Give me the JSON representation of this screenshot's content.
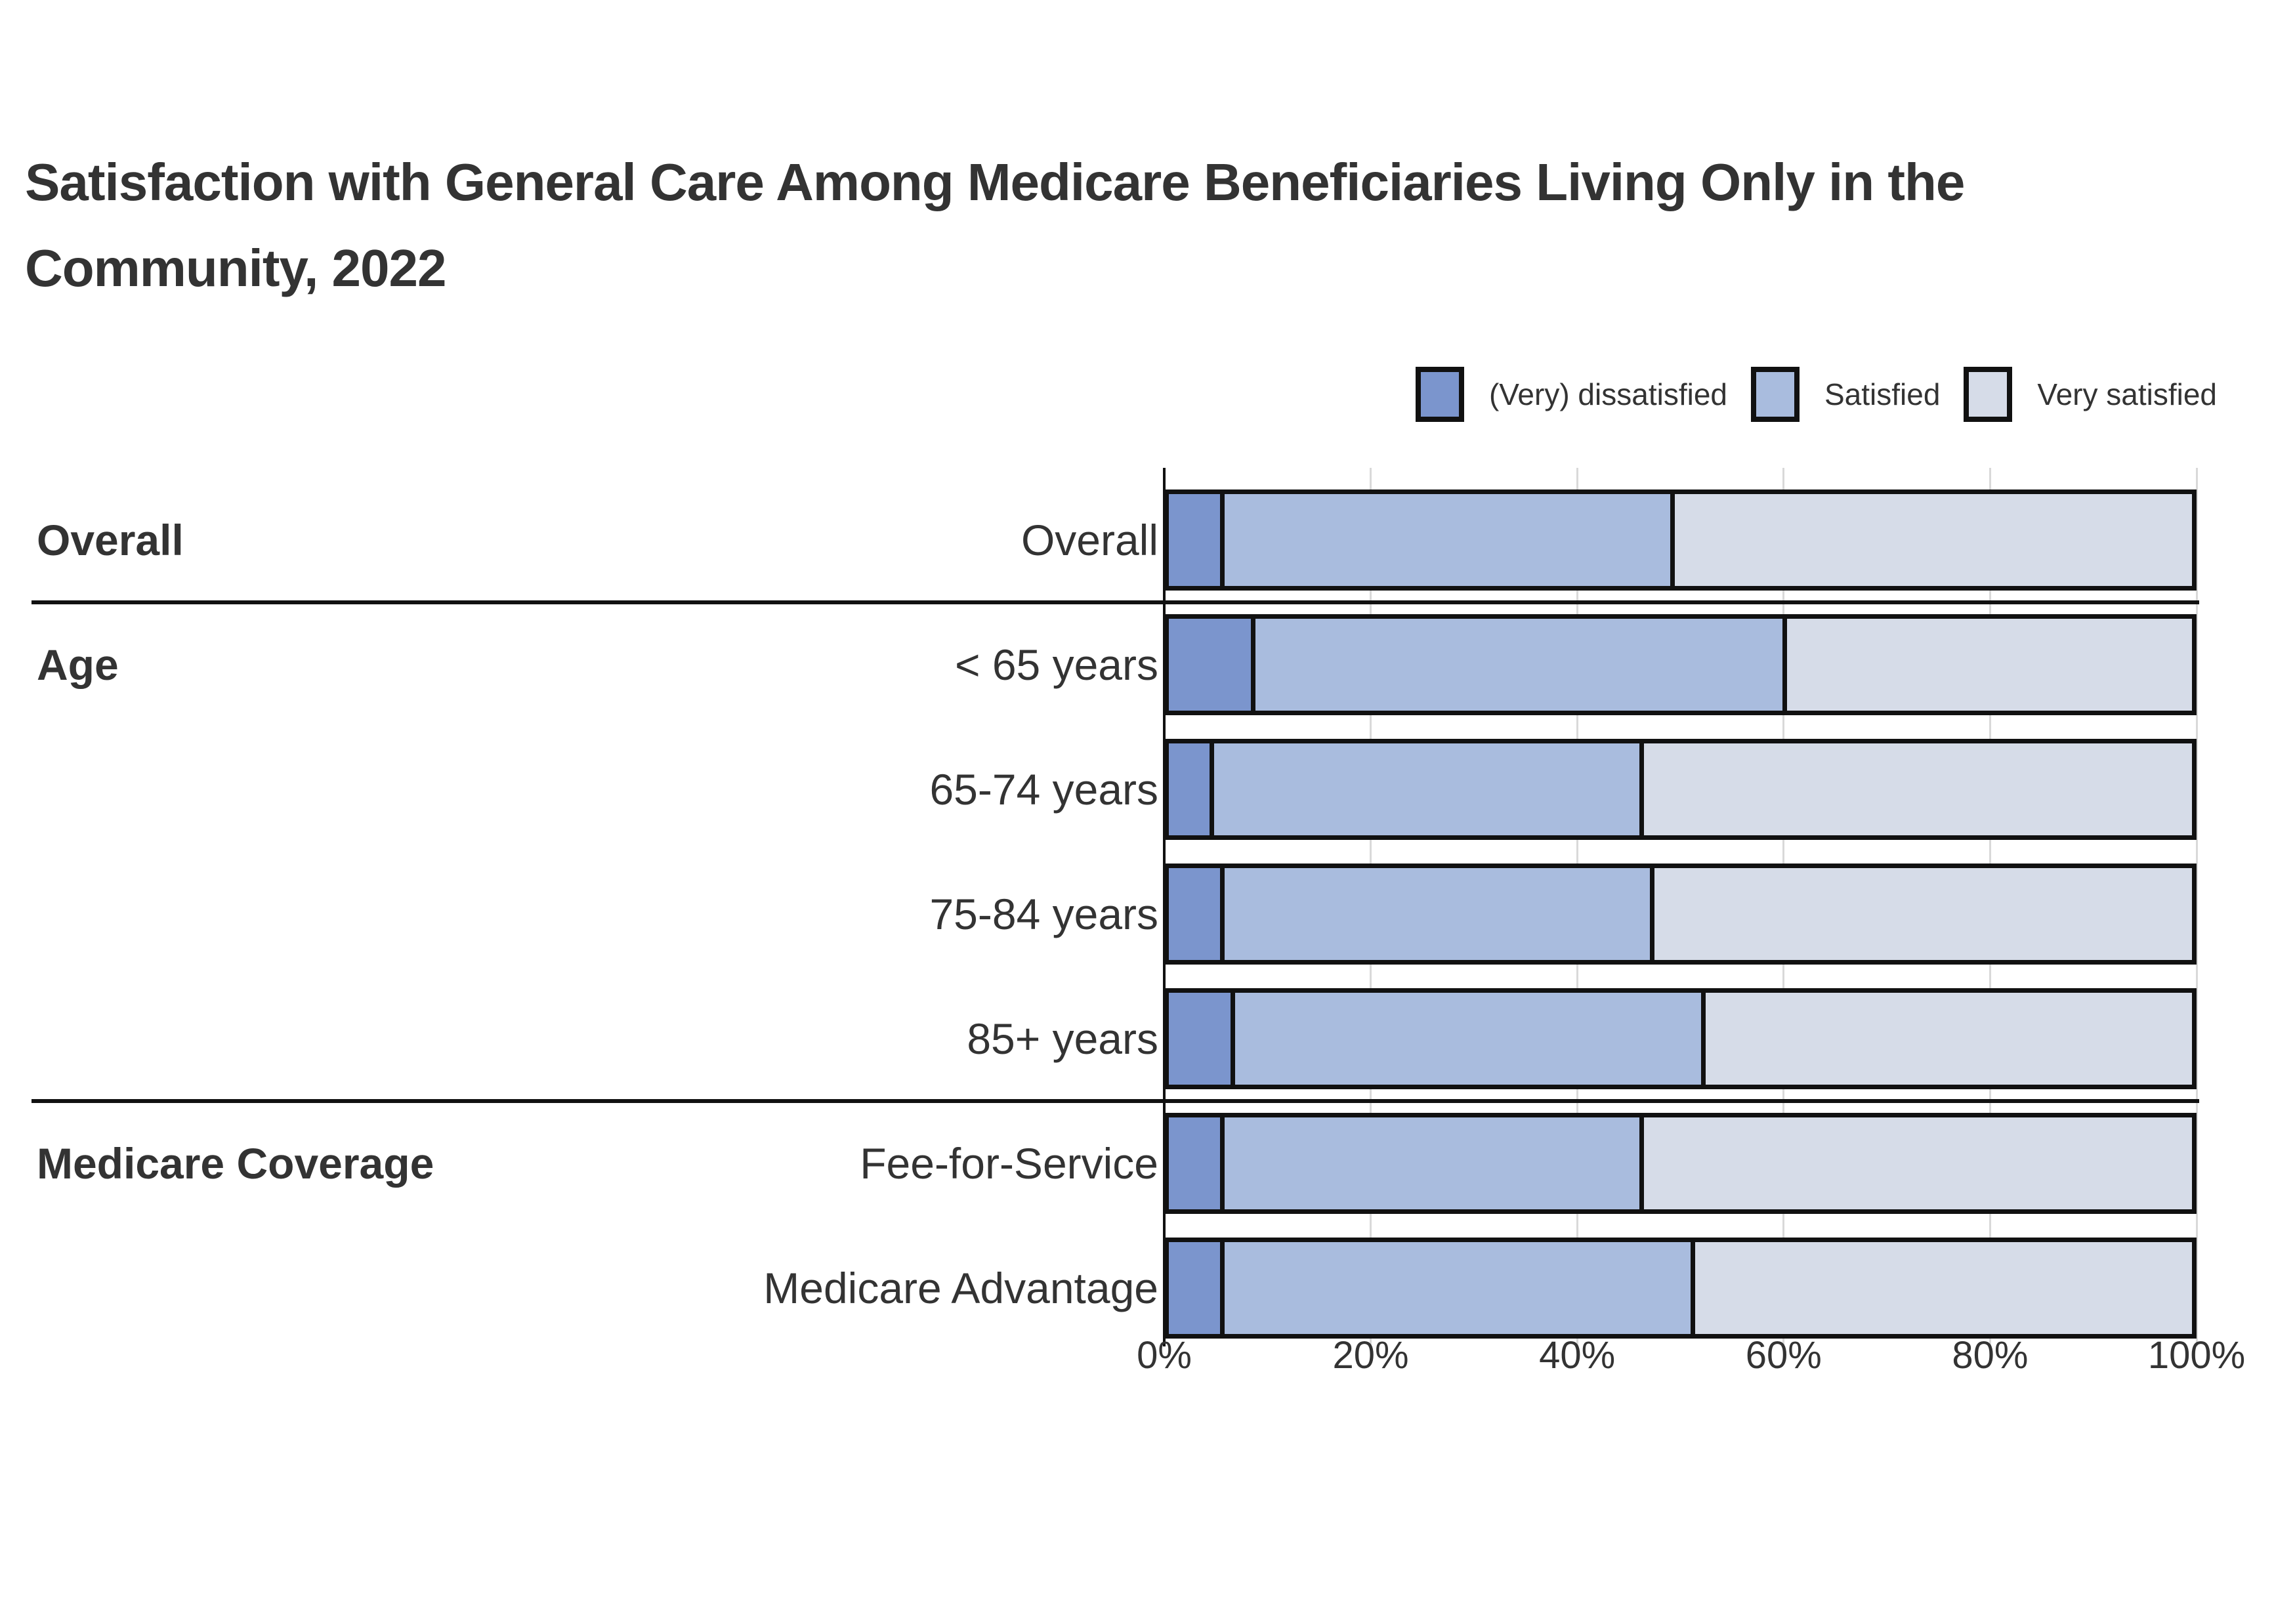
{
  "title": "Satisfaction with General Care Among Medicare Beneficiaries Living Only in the Community, 2022",
  "colors": {
    "dissatisfied": "#7b95cd",
    "satisfied": "#a9bcde",
    "very_satisfied": "#d6dce8",
    "border": "#111111",
    "gridline": "#d9d9d9",
    "text": "#333333"
  },
  "legend": [
    {
      "label": "(Very) dissatisfied",
      "color_key": "dissatisfied"
    },
    {
      "label": "Satisfied",
      "color_key": "satisfied"
    },
    {
      "label": "Very satisfied",
      "color_key": "very_satisfied"
    }
  ],
  "chart_data": {
    "type": "bar",
    "orientation": "horizontal",
    "stacked": true,
    "title": "Satisfaction with General Care Among Medicare Beneficiaries Living Only in the Community, 2022",
    "categories": [
      "Overall",
      "< 65 years",
      "65-74 years",
      "75-84 years",
      "85+ years",
      "Fee-for-Service",
      "Medicare Advantage"
    ],
    "groups": [
      {
        "label": "Overall",
        "first_row": 0,
        "rows": [
          0
        ]
      },
      {
        "label": "Age",
        "first_row": 1,
        "rows": [
          1,
          2,
          3,
          4
        ]
      },
      {
        "label": "Medicare Coverage",
        "first_row": 5,
        "rows": [
          5,
          6
        ]
      }
    ],
    "series": [
      {
        "name": "(Very) dissatisfied",
        "color_key": "dissatisfied",
        "values": [
          5,
          8,
          4,
          5,
          6,
          5,
          5
        ]
      },
      {
        "name": "Satisfied",
        "color_key": "satisfied",
        "values": [
          44,
          52,
          42,
          42,
          46,
          41,
          46
        ]
      },
      {
        "name": "Very satisfied",
        "color_key": "very_satisfied",
        "values": [
          51,
          40,
          54,
          53,
          48,
          54,
          49
        ]
      }
    ],
    "xlabel": "",
    "ylabel": "",
    "xlim": [
      0,
      100
    ],
    "x_tick_labels": [
      "0%",
      "20%",
      "40%",
      "60%",
      "80%",
      "100%"
    ],
    "x_tick_values": [
      0,
      20,
      40,
      60,
      80,
      100
    ],
    "grid": true,
    "legend_position": "top-right"
  }
}
